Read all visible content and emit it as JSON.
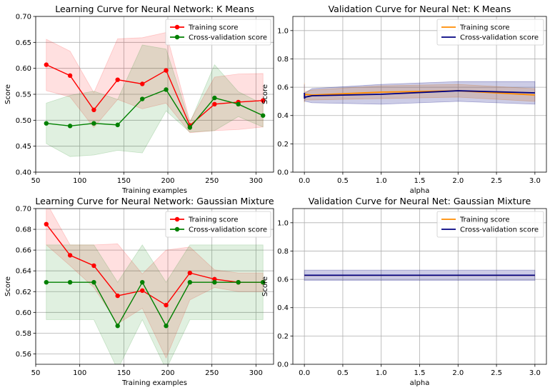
{
  "colors": {
    "training_lc": "#ff0000",
    "cv_lc": "#008000",
    "training_vc": "#ff8c00",
    "cv_vc": "#000080",
    "grid": "#b0b0b0"
  },
  "chart_data": [
    {
      "type": "line",
      "title": "Learning Curve for Neural Network: K Means",
      "xlabel": "Training examples",
      "ylabel": "Score",
      "xlim": [
        50,
        320
      ],
      "ylim": [
        0.4,
        0.7
      ],
      "xticks": [
        "50",
        "100",
        "150",
        "200",
        "250",
        "300"
      ],
      "yticks": [
        "0.40",
        "0.45",
        "0.50",
        "0.55",
        "0.60",
        "0.65",
        "0.70"
      ],
      "grid": true,
      "legend": "top-right",
      "x": [
        62,
        89,
        116,
        143,
        171,
        198,
        225,
        253,
        280,
        308
      ],
      "series": [
        {
          "name": "Training score",
          "color": "#ff0000",
          "values": [
            0.607,
            0.586,
            0.52,
            0.578,
            0.57,
            0.596,
            0.49,
            0.531,
            0.535,
            0.538
          ],
          "lower": [
            0.557,
            0.545,
            0.486,
            0.54,
            0.522,
            0.533,
            0.476,
            0.48,
            0.482,
            0.487
          ],
          "upper": [
            0.656,
            0.633,
            0.553,
            0.657,
            0.659,
            0.669,
            0.498,
            0.583,
            0.589,
            0.59
          ]
        },
        {
          "name": "Cross-validation score",
          "color": "#008000",
          "values": [
            0.494,
            0.489,
            0.494,
            0.491,
            0.541,
            0.559,
            0.486,
            0.543,
            0.531,
            0.509
          ],
          "lower": [
            0.455,
            0.43,
            0.433,
            0.442,
            0.437,
            0.518,
            0.477,
            0.48,
            0.507,
            0.487
          ],
          "upper": [
            0.533,
            0.548,
            0.556,
            0.54,
            0.645,
            0.637,
            0.495,
            0.607,
            0.555,
            0.531
          ]
        }
      ]
    },
    {
      "type": "line",
      "title": "Validation Curve for Neural Net: K Means",
      "xlabel": "alpha",
      "ylabel": "Score",
      "xlim": [
        -0.15,
        3.15
      ],
      "ylim": [
        0.0,
        1.1
      ],
      "xticks": [
        "0.0",
        "0.5",
        "1.0",
        "1.5",
        "2.0",
        "2.5",
        "3.0"
      ],
      "yticks": [
        "0.0",
        "0.2",
        "0.4",
        "0.6",
        "0.8",
        "1.0"
      ],
      "grid": true,
      "legend": "top-right",
      "x": [
        0.0,
        0.001,
        0.01,
        0.1,
        1.0,
        2.0,
        3.0
      ],
      "series": [
        {
          "name": "Training score",
          "color": "#ff8c00",
          "values": [
            0.54,
            0.52,
            0.55,
            0.545,
            0.565,
            0.575,
            0.545
          ],
          "lower": [
            0.49,
            0.5,
            0.51,
            0.51,
            0.52,
            0.53,
            0.5
          ],
          "upper": [
            0.63,
            0.54,
            0.57,
            0.58,
            0.61,
            0.62,
            0.59
          ]
        },
        {
          "name": "Cross-validation score",
          "color": "#000080",
          "values": [
            0.56,
            0.52,
            0.53,
            0.54,
            0.55,
            0.575,
            0.56
          ],
          "lower": [
            0.5,
            0.5,
            0.5,
            0.49,
            0.48,
            0.5,
            0.48
          ],
          "upper": [
            0.62,
            0.54,
            0.56,
            0.59,
            0.62,
            0.64,
            0.64
          ]
        }
      ]
    },
    {
      "type": "line",
      "title": "Learning Curve for Neural Network: Gaussian Mixture",
      "xlabel": "Training examples",
      "ylabel": "Score",
      "xlim": [
        50,
        320
      ],
      "ylim": [
        0.55,
        0.7
      ],
      "xticks": [
        "50",
        "100",
        "150",
        "200",
        "250",
        "300"
      ],
      "yticks": [
        "0.56",
        "0.58",
        "0.60",
        "0.62",
        "0.64",
        "0.66",
        "0.68",
        "0.70"
      ],
      "grid": true,
      "legend": "top-right",
      "x": [
        62,
        89,
        116,
        143,
        171,
        198,
        225,
        253,
        280,
        308
      ],
      "series": [
        {
          "name": "Training score",
          "color": "#ff0000",
          "values": [
            0.685,
            0.655,
            0.645,
            0.616,
            0.621,
            0.607,
            0.638,
            0.632,
            0.629,
            0.629
          ],
          "lower": [
            0.665,
            0.645,
            0.624,
            0.589,
            0.604,
            0.556,
            0.612,
            0.624,
            0.62,
            0.62
          ],
          "upper": [
            0.706,
            0.665,
            0.665,
            0.666,
            0.637,
            0.66,
            0.663,
            0.641,
            0.638,
            0.638
          ]
        },
        {
          "name": "Cross-validation score",
          "color": "#008000",
          "values": [
            0.629,
            0.629,
            0.629,
            0.587,
            0.629,
            0.587,
            0.629,
            0.629,
            0.629,
            0.629
          ],
          "lower": [
            0.593,
            0.593,
            0.593,
            0.545,
            0.593,
            0.545,
            0.593,
            0.593,
            0.593,
            0.593
          ],
          "upper": [
            0.665,
            0.665,
            0.665,
            0.629,
            0.665,
            0.629,
            0.665,
            0.665,
            0.665,
            0.665
          ]
        }
      ]
    },
    {
      "type": "line",
      "title": "Validation Curve for Neural Net: Gaussian Mixture",
      "xlabel": "alpha",
      "ylabel": "Score",
      "xlim": [
        -0.15,
        3.15
      ],
      "ylim": [
        0.0,
        1.1
      ],
      "xticks": [
        "0.0",
        "0.5",
        "1.0",
        "1.5",
        "2.0",
        "2.5",
        "3.0"
      ],
      "yticks": [
        "0.0",
        "0.2",
        "0.4",
        "0.6",
        "0.8",
        "1.0"
      ],
      "grid": true,
      "legend": "top-right",
      "x": [
        0.0,
        0.001,
        0.01,
        0.1,
        1.0,
        2.0,
        3.0
      ],
      "series": [
        {
          "name": "Training score",
          "color": "#ff8c00",
          "values": [
            0.629,
            0.629,
            0.629,
            0.629,
            0.629,
            0.629,
            0.629
          ],
          "lower": [
            0.629,
            0.629,
            0.629,
            0.629,
            0.629,
            0.629,
            0.629
          ],
          "upper": [
            0.629,
            0.629,
            0.629,
            0.629,
            0.629,
            0.629,
            0.629
          ]
        },
        {
          "name": "Cross-validation score",
          "color": "#000080",
          "values": [
            0.629,
            0.629,
            0.629,
            0.629,
            0.629,
            0.629,
            0.629
          ],
          "lower": [
            0.593,
            0.593,
            0.593,
            0.593,
            0.593,
            0.593,
            0.593
          ],
          "upper": [
            0.665,
            0.665,
            0.665,
            0.665,
            0.665,
            0.665,
            0.665
          ]
        }
      ]
    }
  ]
}
